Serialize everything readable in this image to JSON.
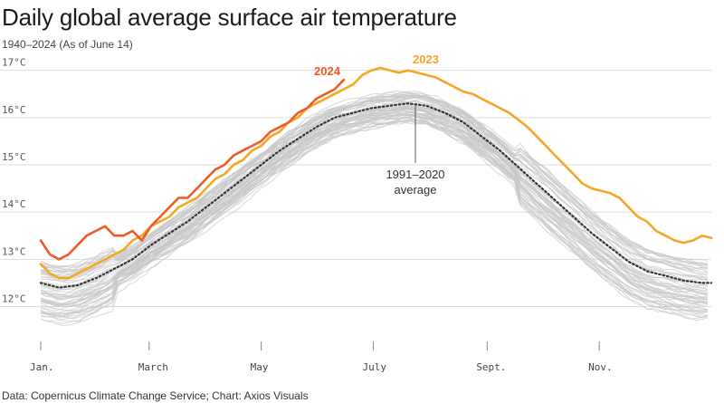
{
  "header": {
    "title": "Daily global average surface air temperature",
    "subtitle": "1940–2024 (As of June 14)"
  },
  "footer": {
    "source": "Data: Copernicus Climate Change Service; Chart: Axios Visuals"
  },
  "colors": {
    "y2024": "#f05a28",
    "y2023": "#f5a623",
    "historic": "#c8c8c8",
    "average": "#333333",
    "grid": "#dddddd"
  },
  "chart_data": {
    "type": "line",
    "title": "Daily global average surface air temperature",
    "subtitle": "1940–2024 (As of June 14)",
    "xlabel": "",
    "ylabel": "",
    "x_unit": "day of year",
    "xlim": [
      1,
      366
    ],
    "ylim": [
      11.3,
      17.3
    ],
    "y_ticks": [
      12,
      13,
      14,
      15,
      16,
      17
    ],
    "y_tick_labels": [
      "12°C",
      "13°C",
      "14°C",
      "15°C",
      "16°C",
      "17°C"
    ],
    "x_ticks": [
      1,
      60,
      121,
      182,
      244,
      305
    ],
    "x_tick_labels": [
      "Jan.",
      "March",
      "May",
      "July",
      "Sept.",
      "Nov."
    ],
    "grid": true,
    "annotations": [
      {
        "text": "2024",
        "series": "2024"
      },
      {
        "text": "2023",
        "series": "2023"
      },
      {
        "text": "1991–2020 average",
        "series": "1991–2020 average"
      }
    ],
    "series": [
      {
        "name": "2024",
        "x": [
          1,
          6,
          11,
          16,
          21,
          26,
          31,
          36,
          41,
          46,
          51,
          56,
          61,
          66,
          71,
          76,
          81,
          86,
          91,
          96,
          101,
          106,
          111,
          116,
          121,
          126,
          131,
          136,
          141,
          146,
          151,
          156,
          161,
          166
        ],
        "values": [
          13.4,
          13.1,
          13.0,
          13.1,
          13.3,
          13.5,
          13.6,
          13.7,
          13.5,
          13.5,
          13.6,
          13.4,
          13.7,
          13.9,
          14.1,
          14.3,
          14.3,
          14.5,
          14.7,
          14.9,
          15.0,
          15.2,
          15.3,
          15.4,
          15.5,
          15.7,
          15.8,
          15.9,
          16.1,
          16.2,
          16.4,
          16.5,
          16.6,
          16.8
        ]
      },
      {
        "name": "2023",
        "x": [
          1,
          6,
          11,
          16,
          21,
          26,
          31,
          36,
          41,
          46,
          51,
          56,
          61,
          66,
          71,
          76,
          81,
          86,
          91,
          96,
          101,
          106,
          111,
          116,
          121,
          126,
          131,
          136,
          141,
          146,
          151,
          156,
          161,
          166,
          171,
          176,
          181,
          186,
          191,
          196,
          201,
          206,
          211,
          216,
          221,
          226,
          231,
          236,
          241,
          246,
          251,
          256,
          261,
          266,
          271,
          276,
          281,
          286,
          291,
          296,
          301,
          306,
          311,
          316,
          321,
          326,
          331,
          336,
          341,
          346,
          351,
          356,
          361,
          366
        ],
        "values": [
          12.9,
          12.7,
          12.6,
          12.6,
          12.7,
          12.8,
          12.9,
          13.0,
          13.1,
          13.2,
          13.4,
          13.5,
          13.7,
          13.8,
          13.9,
          14.1,
          14.2,
          14.3,
          14.5,
          14.7,
          14.8,
          15.0,
          15.1,
          15.3,
          15.4,
          15.6,
          15.7,
          15.9,
          16.0,
          16.2,
          16.3,
          16.4,
          16.5,
          16.6,
          16.7,
          16.9,
          17.0,
          17.05,
          17.0,
          16.95,
          17.0,
          16.95,
          16.9,
          16.85,
          16.75,
          16.65,
          16.55,
          16.5,
          16.4,
          16.3,
          16.2,
          16.1,
          15.95,
          15.8,
          15.6,
          15.4,
          15.2,
          15.0,
          14.8,
          14.6,
          14.5,
          14.45,
          14.4,
          14.3,
          14.1,
          13.9,
          13.8,
          13.6,
          13.5,
          13.4,
          13.35,
          13.4,
          13.5,
          13.45
        ]
      },
      {
        "name": "1991–2020 average",
        "x": [
          1,
          11,
          21,
          31,
          41,
          51,
          61,
          71,
          81,
          91,
          101,
          111,
          121,
          131,
          141,
          151,
          161,
          171,
          181,
          191,
          201,
          211,
          221,
          231,
          241,
          251,
          261,
          271,
          281,
          291,
          301,
          311,
          321,
          331,
          341,
          351,
          361,
          366
        ],
        "values": [
          12.5,
          12.4,
          12.45,
          12.6,
          12.8,
          13.0,
          13.3,
          13.55,
          13.8,
          14.1,
          14.4,
          14.7,
          15.0,
          15.3,
          15.55,
          15.8,
          16.0,
          16.1,
          16.2,
          16.25,
          16.3,
          16.25,
          16.1,
          15.9,
          15.6,
          15.3,
          14.95,
          14.6,
          14.25,
          13.9,
          13.55,
          13.25,
          12.95,
          12.75,
          12.65,
          12.55,
          12.5,
          12.5
        ]
      }
    ]
  }
}
